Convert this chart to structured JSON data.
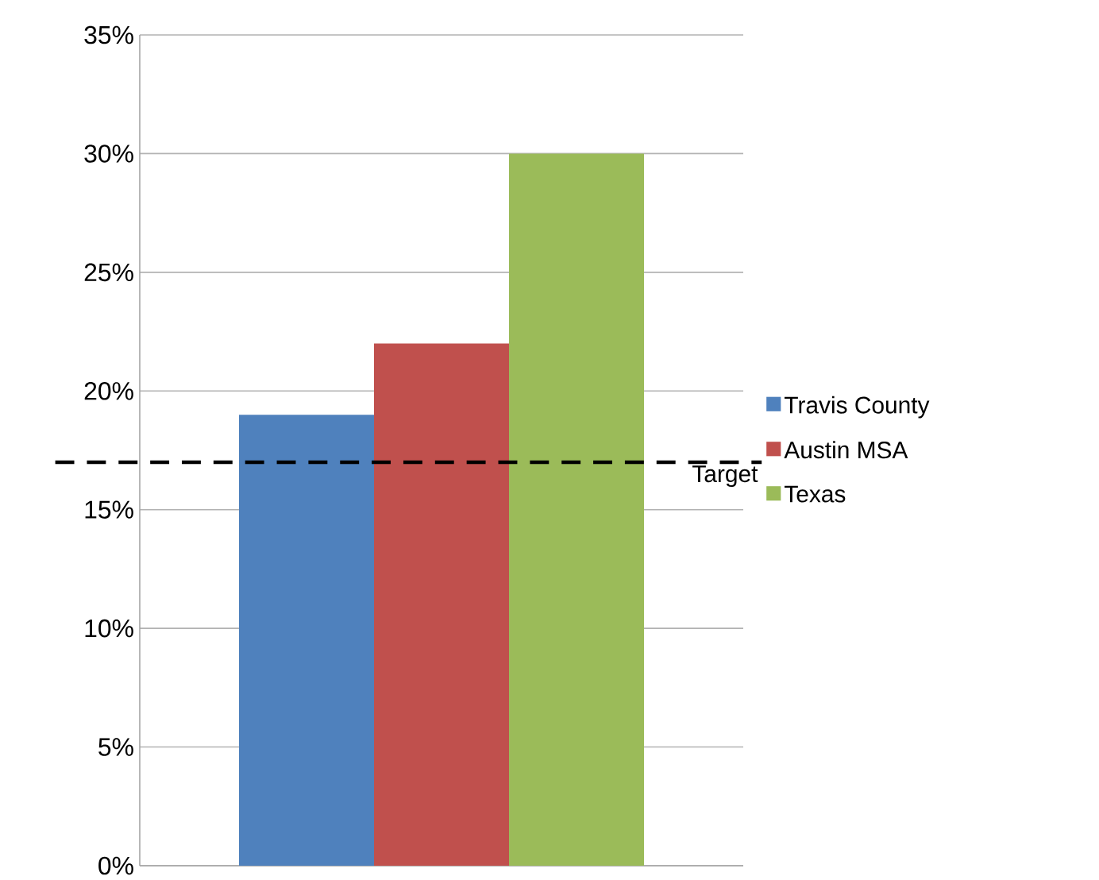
{
  "chart_data": {
    "type": "bar",
    "categories": [
      null
    ],
    "series": [
      {
        "name": "Travis County",
        "color": "#4f81bd",
        "values": [
          19
        ]
      },
      {
        "name": "Austin MSA",
        "color": "#c0504d",
        "values": [
          22
        ]
      },
      {
        "name": "Texas",
        "color": "#9bbb59",
        "values": [
          30
        ]
      }
    ],
    "ylim": [
      0,
      35
    ],
    "yticks": [
      {
        "value": 0,
        "label": "0%"
      },
      {
        "value": 5,
        "label": "5%"
      },
      {
        "value": 10,
        "label": "10%"
      },
      {
        "value": 15,
        "label": "15%"
      },
      {
        "value": 20,
        "label": "20%"
      },
      {
        "value": 25,
        "label": "25%"
      },
      {
        "value": 30,
        "label": "30%"
      },
      {
        "value": 35,
        "label": "35%"
      }
    ],
    "grid": "y",
    "legend": "right",
    "ref_lines": [
      {
        "axis": "y",
        "value": 17,
        "label": "Target",
        "color": "#000000",
        "line_style": "dashed"
      }
    ]
  }
}
